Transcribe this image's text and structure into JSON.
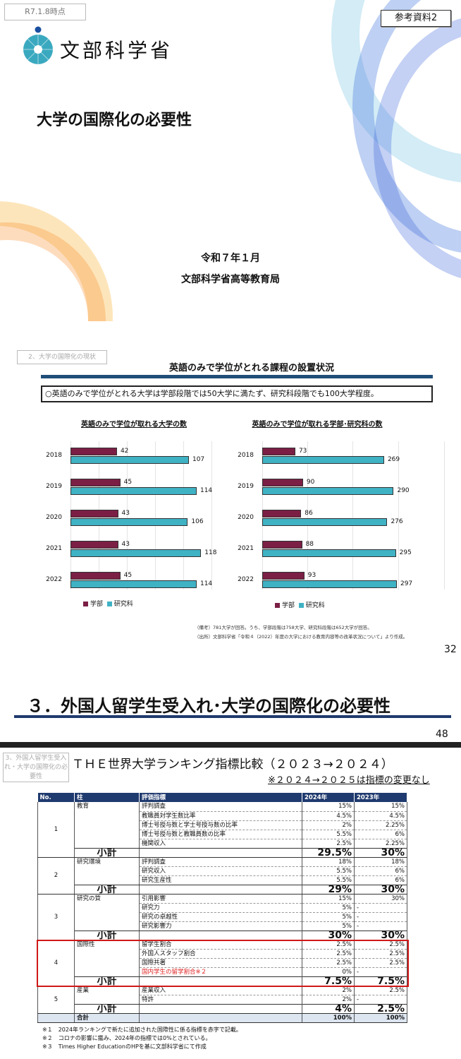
{
  "slide1": {
    "date_stamp": "R7.1.8時点",
    "doc_tag": "参考資料2",
    "logo_text": "文部科学省",
    "title": "大学の国際化の必要性",
    "date": "令和７年１月",
    "bureau": "文部科学省高等教育局",
    "colors": {
      "logo": "#3aa9c0",
      "logo_dot": "#1a4fa0"
    }
  },
  "slide2": {
    "section_tag": "2、大学の国際化の現状",
    "title": "英語のみで学位がとれる課程の設置状況",
    "summary": "○英語のみで学位がとれる大学は学部段階では50大学に満たず、研究科段階でも100大学程度。",
    "note1": "（備考）781大学が回答。うち、学部段階は758大学、研究科段階は652大学が回答。",
    "note2": "（出所）文部科学省「令和４（2022）年度の大学における教育内容等の改革状況について」より作成。",
    "page_number": "32"
  },
  "chart_data": [
    {
      "type": "bar",
      "orientation": "horizontal",
      "title": "英語のみで学位が取れる大学の数",
      "categories": [
        "2018",
        "2019",
        "2020",
        "2021",
        "2022"
      ],
      "series": [
        {
          "name": "学部",
          "values": [
            42,
            45,
            43,
            43,
            45
          ],
          "color": "#7b1f45"
        },
        {
          "name": "研究科",
          "values": [
            107,
            114,
            106,
            118,
            114
          ],
          "color": "#3fb2c4"
        }
      ],
      "legend": "bottom-left",
      "grid": true
    },
    {
      "type": "bar",
      "orientation": "horizontal",
      "title": "英語のみで学位が取れる学部･研究科の数",
      "categories": [
        "2018",
        "2019",
        "2020",
        "2021",
        "2022"
      ],
      "series": [
        {
          "name": "学部",
          "values": [
            73,
            90,
            86,
            88,
            93
          ],
          "color": "#7b1f45"
        },
        {
          "name": "研究科",
          "values": [
            269,
            290,
            276,
            295,
            297
          ],
          "color": "#3fb2c4"
        }
      ],
      "legend": "bottom-left",
      "grid": true
    }
  ],
  "slide3": {
    "title": "３．外国人留学生受入れ･大学の国際化の必要性",
    "page_number": "48"
  },
  "slide4": {
    "section_tag": "3、外国人留学生受入れ・大学の国際化の必要性",
    "title": "ＴＨＥ世界大学ランキング指標比較（２０２３→２０２４）",
    "subtitle": "※２０２４→２０２５は指標の変更なし",
    "headers": [
      "No.",
      "柱",
      "評価指標",
      "2024年",
      "2023年"
    ],
    "sections": [
      {
        "no": "1",
        "pillar": "教育",
        "rows": [
          {
            "indicator": "評判調査",
            "y2024": "15%",
            "y2023": "15%"
          },
          {
            "indicator": "教職員対学生数比率",
            "y2024": "4.5%",
            "y2023": "4.5%"
          },
          {
            "indicator": "博士号授与数と学士号授与数の比率",
            "y2024": "2%",
            "y2023": "2.25%"
          },
          {
            "indicator": "博士号授与数と教職員数の比率",
            "y2024": "5.5%",
            "y2023": "6%"
          },
          {
            "indicator": "機関収入",
            "y2024": "2.5%",
            "y2023": "2.25%"
          }
        ],
        "subtotal": {
          "y2024": "29.5%",
          "y2023": "30%"
        }
      },
      {
        "no": "2",
        "pillar": "研究環境",
        "rows": [
          {
            "indicator": "評判調査",
            "y2024": "18%",
            "y2023": "18%"
          },
          {
            "indicator": "研究収入",
            "y2024": "5.5%",
            "y2023": "6%"
          },
          {
            "indicator": "研究生産性",
            "y2024": "5.5%",
            "y2023": "6%"
          }
        ],
        "subtotal": {
          "y2024": "29%",
          "y2023": "30%"
        }
      },
      {
        "no": "3",
        "pillar": "研究の質",
        "rows": [
          {
            "indicator": "引用影響",
            "y2024": "15%",
            "y2023": "30%"
          },
          {
            "indicator": "研究力",
            "y2024": "5%",
            "y2023": "-"
          },
          {
            "indicator": "研究の卓越性",
            "y2024": "5%",
            "y2023": "-"
          },
          {
            "indicator": "研究影響力",
            "y2024": "5%",
            "y2023": "-"
          }
        ],
        "subtotal": {
          "y2024": "30%",
          "y2023": "30%"
        }
      },
      {
        "no": "4",
        "pillar": "国際性",
        "highlight": true,
        "rows": [
          {
            "indicator": "留学生割合",
            "y2024": "2.5%",
            "y2023": "2.5%"
          },
          {
            "indicator": "外国人スタッフ割合",
            "y2024": "2.5%",
            "y2023": "2.5%"
          },
          {
            "indicator": "国際共著",
            "y2024": "2.5%",
            "y2023": "2.5%"
          },
          {
            "indicator": "国内学生の留学割合※２",
            "y2024": "0%",
            "y2023": "-",
            "new": true
          }
        ],
        "subtotal": {
          "y2024": "7.5%",
          "y2023": "7.5%"
        }
      },
      {
        "no": "5",
        "pillar": "産業",
        "rows": [
          {
            "indicator": "産業収入",
            "y2024": "2%",
            "y2023": "2.5%"
          },
          {
            "indicator": "特許",
            "y2024": "2%",
            "y2023": "-"
          }
        ],
        "subtotal": {
          "y2024": "4%",
          "y2023": "2.5%"
        }
      }
    ],
    "subtotal_label": "小計",
    "total": {
      "label": "合計",
      "y2024": "100%",
      "y2023": "100%"
    },
    "notes": [
      "※１　2024年ランキングで新たに追加された国際性に係る指標を赤字で記載。",
      "※２　コロナの影響に鑑み、2024年の指標では0%とされている。",
      "※３　Times Higher EducationのHPを基に文部科学省にて作成"
    ],
    "colors": {
      "header": "#1f3a6e",
      "highlight": "#d01818",
      "new_indicator": "#e02020",
      "total_row": "#dce5f0"
    }
  }
}
